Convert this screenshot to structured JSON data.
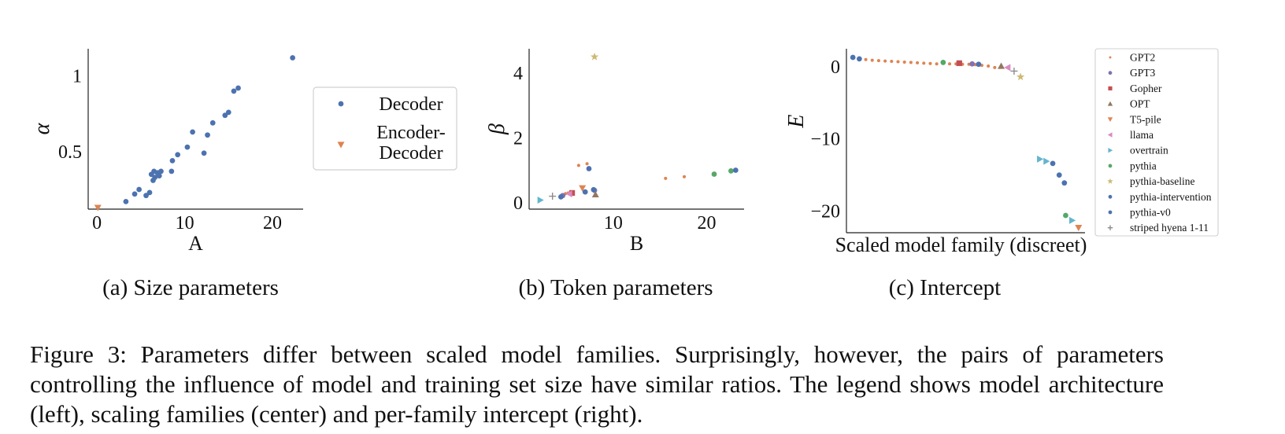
{
  "figure": {
    "caption": "Figure 3: Parameters differ between scaled model families. Surprisingly, however, the pairs of parameters controlling the influence of model and training set size have similar ratios. The legend shows model architecture (left), scaling families (center) and per-family intercept (right)."
  },
  "colors": {
    "blue": "#4c72b0",
    "orange": "#dd8452",
    "green": "#55a868",
    "red": "#c44e52",
    "purple": "#8172b3",
    "brown": "#937860",
    "pink": "#da8bc3",
    "gray": "#8c8c8c",
    "olive": "#ccb974",
    "cyan": "#64b5cd"
  },
  "chart_data": [
    {
      "type": "scatter",
      "subcaption": "(a) Size parameters",
      "xlabel": "A",
      "ylabel": "α",
      "xlim": [
        -1,
        23.5
      ],
      "ylim": [
        0.12,
        1.18
      ],
      "xticks": [
        0,
        10,
        20
      ],
      "yticks": [
        0.5,
        1.0
      ],
      "grid": false,
      "legend_position": "right-outside",
      "series": [
        {
          "name": "Decoder",
          "marker": "circle",
          "color": "#4c72b0",
          "points": [
            [
              3.3,
              0.17
            ],
            [
              4.3,
              0.22
            ],
            [
              4.8,
              0.25
            ],
            [
              5.6,
              0.21
            ],
            [
              6.0,
              0.23
            ],
            [
              6.2,
              0.35
            ],
            [
              6.4,
              0.31
            ],
            [
              6.6,
              0.33
            ],
            [
              6.5,
              0.37
            ],
            [
              6.9,
              0.36
            ],
            [
              7.3,
              0.37
            ],
            [
              7.1,
              0.34
            ],
            [
              8.5,
              0.37
            ],
            [
              8.6,
              0.44
            ],
            [
              9.2,
              0.48
            ],
            [
              10.3,
              0.53
            ],
            [
              10.9,
              0.63
            ],
            [
              12.2,
              0.49
            ],
            [
              12.6,
              0.61
            ],
            [
              13.2,
              0.69
            ],
            [
              14.6,
              0.74
            ],
            [
              15.0,
              0.76
            ],
            [
              15.6,
              0.9
            ],
            [
              16.1,
              0.92
            ],
            [
              22.3,
              1.12
            ]
          ]
        },
        {
          "name": "Encoder-Decoder",
          "marker": "triangle-down",
          "color": "#dd8452",
          "points": [
            [
              0.1,
              0.13
            ]
          ]
        }
      ]
    },
    {
      "type": "scatter",
      "subcaption": "(b) Token parameters",
      "xlabel": "B",
      "ylabel": "β",
      "xlim": [
        1,
        24
      ],
      "ylim": [
        -0.2,
        4.75
      ],
      "xticks": [
        10,
        20
      ],
      "yticks": [
        0,
        2,
        4
      ],
      "grid": false,
      "series": [
        {
          "name": "GPT2",
          "marker": "point",
          "color": "#dd8452",
          "points": [
            [
              6.3,
              1.15
            ],
            [
              7.2,
              1.2
            ],
            [
              15.6,
              0.75
            ],
            [
              17.6,
              0.8
            ],
            [
              5.2,
              0.3
            ],
            [
              4.9,
              0.28
            ]
          ]
        },
        {
          "name": "GPT3",
          "marker": "circle",
          "color": "#8172b3",
          "points": [
            [
              8.0,
              0.38
            ],
            [
              4.6,
              0.22
            ]
          ]
        },
        {
          "name": "Gopher",
          "marker": "square",
          "color": "#c44e52",
          "points": [
            [
              5.6,
              0.3
            ]
          ]
        },
        {
          "name": "OPT",
          "marker": "triangle-up",
          "color": "#937860",
          "points": [
            [
              8.1,
              0.25
            ]
          ]
        },
        {
          "name": "T5-pile",
          "marker": "triangle-down",
          "color": "#dd8452",
          "points": [
            [
              6.7,
              0.45
            ]
          ]
        },
        {
          "name": "llama",
          "marker": "triangle-left",
          "color": "#da8bc3",
          "points": [
            [
              5.3,
              0.27
            ]
          ]
        },
        {
          "name": "overtrain",
          "marker": "triangle-right",
          "color": "#64b5cd",
          "points": [
            [
              2.2,
              0.08
            ]
          ]
        },
        {
          "name": "pythia",
          "marker": "circle",
          "color": "#55a868",
          "points": [
            [
              20.8,
              0.88
            ],
            [
              22.6,
              0.98
            ]
          ]
        },
        {
          "name": "pythia-baseline",
          "marker": "star",
          "color": "#ccb974",
          "points": [
            [
              8.0,
              4.5
            ]
          ]
        },
        {
          "name": "pythia-intervention",
          "marker": "circle",
          "color": "#4c72b0",
          "points": [
            [
              7.4,
              1.05
            ],
            [
              4.4,
              0.18
            ],
            [
              7.9,
              0.4
            ],
            [
              7.0,
              0.33
            ]
          ]
        },
        {
          "name": "pythia-v0",
          "marker": "circle",
          "color": "#4c72b0",
          "points": [
            [
              23.1,
              1.0
            ]
          ]
        },
        {
          "name": "striped hyena 1-11",
          "marker": "plus",
          "color": "#8c8c8c",
          "points": [
            [
              3.5,
              0.2
            ]
          ]
        }
      ]
    },
    {
      "type": "scatter",
      "subcaption": "(c) Intercept",
      "xlabel": "Scaled model family (discreet)",
      "ylabel": "E",
      "xlim": [
        -1,
        36
      ],
      "ylim": [
        -23,
        2.5
      ],
      "yticks": [
        0,
        -10,
        -20
      ],
      "ytick_labels": [
        "0",
        "−10",
        "−20"
      ],
      "grid": false,
      "legend_position": "right-outside",
      "series": [
        {
          "name": "GPT2",
          "marker": "point",
          "color": "#dd8452",
          "points": [
            [
              2,
              1.0
            ],
            [
              3,
              0.9
            ],
            [
              4,
              0.85
            ],
            [
              5,
              0.8
            ],
            [
              6,
              0.75
            ],
            [
              7,
              0.7
            ],
            [
              8,
              0.65
            ],
            [
              9,
              0.6
            ],
            [
              10,
              0.55
            ],
            [
              11,
              0.5
            ],
            [
              12,
              0.45
            ],
            [
              13,
              0.4
            ],
            [
              15,
              0.4
            ],
            [
              16,
              0.4
            ],
            [
              17,
              0.35
            ],
            [
              18,
              0.35
            ],
            [
              19,
              0.3
            ],
            [
              20,
              0.2
            ],
            [
              21,
              0.1
            ],
            [
              22,
              -0.1
            ]
          ]
        },
        {
          "name": "GPT3",
          "marker": "circle",
          "color": "#8172b3",
          "points": [
            [
              18.5,
              0.4
            ]
          ]
        },
        {
          "name": "Gopher",
          "marker": "square",
          "color": "#c44e52",
          "points": [
            [
              16.5,
              0.5
            ]
          ]
        },
        {
          "name": "OPT",
          "marker": "triangle-up",
          "color": "#937860",
          "points": [
            [
              23,
              0.1
            ]
          ]
        },
        {
          "name": "T5-pile",
          "marker": "triangle-down",
          "color": "#dd8452",
          "points": [
            [
              35,
              -22.3
            ]
          ]
        },
        {
          "name": "llama",
          "marker": "triangle-left",
          "color": "#da8bc3",
          "points": [
            [
              24,
              -0.1
            ]
          ]
        },
        {
          "name": "overtrain",
          "marker": "triangle-right",
          "color": "#64b5cd",
          "points": [
            [
              29,
              -12.8
            ],
            [
              30,
              -13.1
            ],
            [
              34,
              -21.3
            ]
          ]
        },
        {
          "name": "pythia",
          "marker": "circle",
          "color": "#55a868",
          "points": [
            [
              14,
              0.6
            ],
            [
              33,
              -20.6
            ]
          ]
        },
        {
          "name": "pythia-baseline",
          "marker": "star",
          "color": "#ccb974",
          "points": [
            [
              26,
              -1.4
            ]
          ]
        },
        {
          "name": "pythia-intervention",
          "marker": "circle",
          "color": "#4c72b0",
          "points": [
            [
              0,
              1.3
            ],
            [
              1,
              1.1
            ],
            [
              31,
              -13.4
            ],
            [
              32,
              -15.0
            ],
            [
              32.8,
              -16.1
            ]
          ]
        },
        {
          "name": "pythia-v0",
          "marker": "circle",
          "color": "#4c72b0",
          "points": [
            [
              19.5,
              0.35
            ]
          ]
        },
        {
          "name": "striped hyena 1-11",
          "marker": "plus",
          "color": "#8c8c8c",
          "points": [
            [
              25,
              -0.6
            ]
          ]
        }
      ]
    }
  ]
}
